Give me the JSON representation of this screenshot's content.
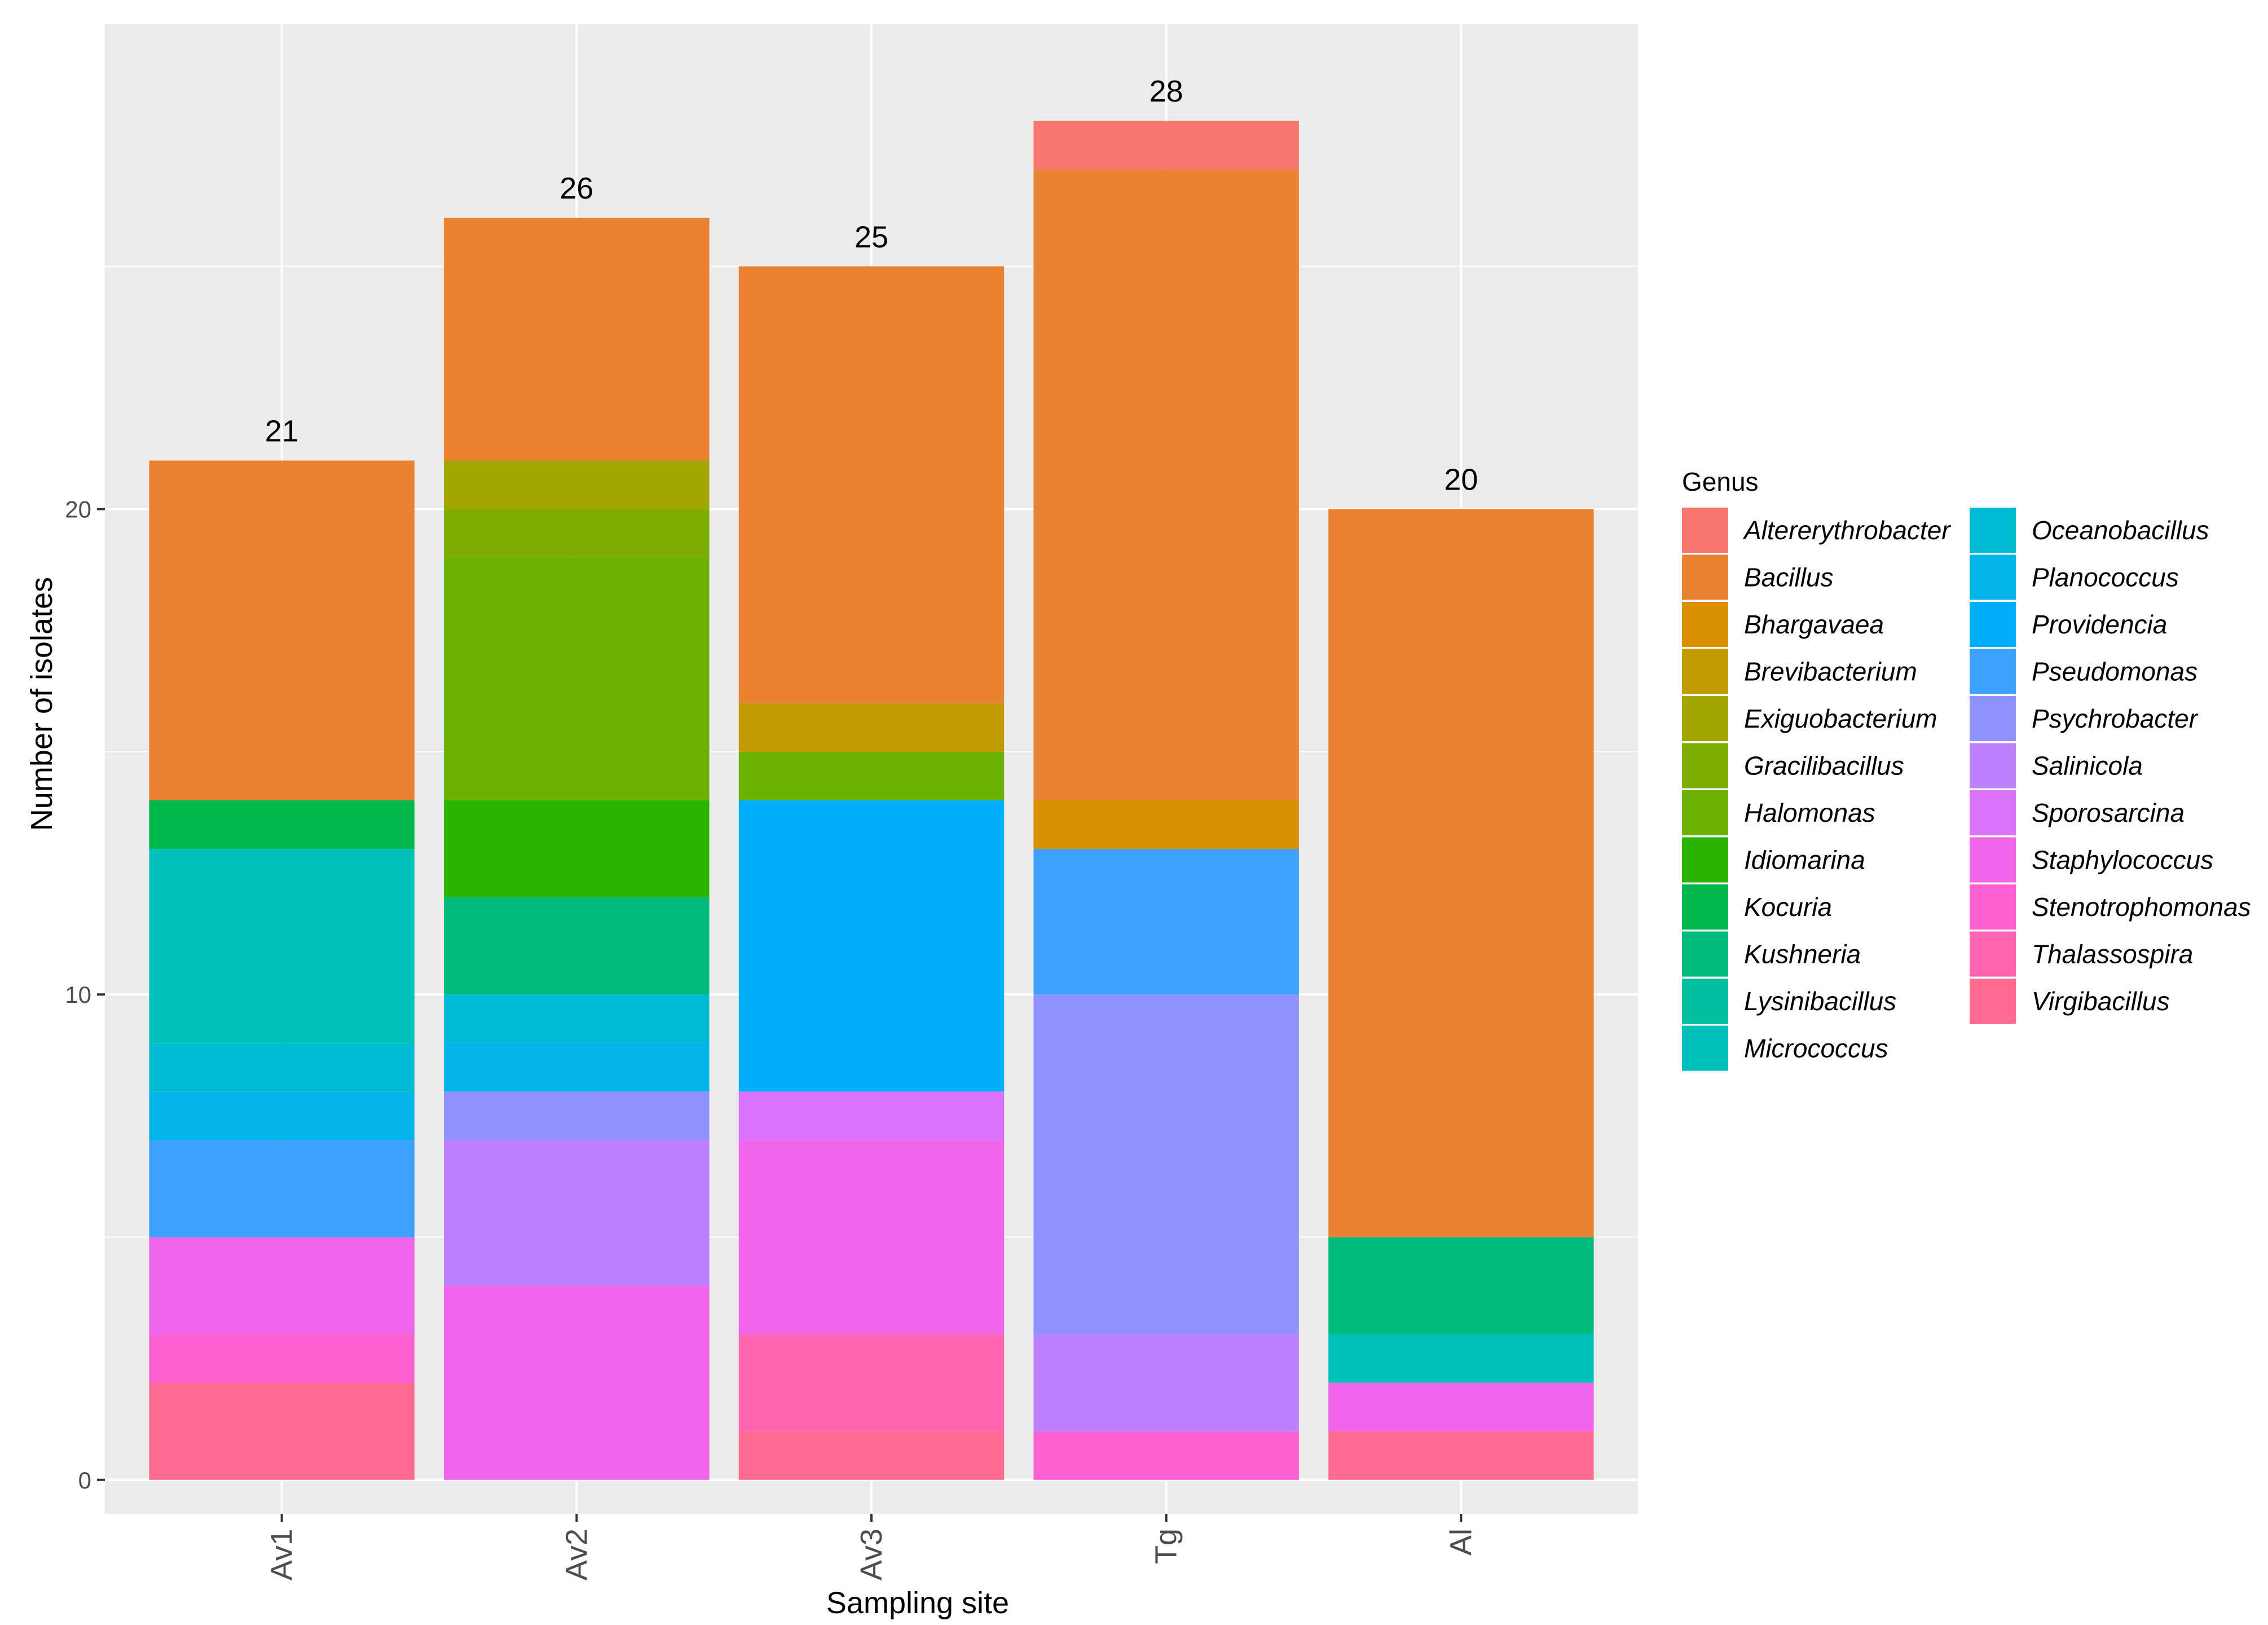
{
  "chart_data": {
    "type": "bar",
    "stacked": true,
    "xlabel": "Sampling site",
    "ylabel": "Number of isolates",
    "ylim": [
      -0.7,
      30
    ],
    "yticks": [
      0,
      10,
      20
    ],
    "categories": [
      "Av1",
      "Av2",
      "Av3",
      "Tg",
      "Al"
    ],
    "totals": [
      21,
      26,
      25,
      28,
      20
    ],
    "legend": {
      "title": "Genus",
      "placement": "right",
      "genera": [
        {
          "name": "Altererythrobacter",
          "color": "#F8766D"
        },
        {
          "name": "Bacillus",
          "color": "#EA8331"
        },
        {
          "name": "Bhargavaea",
          "color": "#D89000"
        },
        {
          "name": "Brevibacterium",
          "color": "#C09B00"
        },
        {
          "name": "Exiguobacterium",
          "color": "#A3A500"
        },
        {
          "name": "Gracilibacillus",
          "color": "#7CAE00"
        },
        {
          "name": "Halomonas",
          "color": "#6BB100"
        },
        {
          "name": "Idiomarina",
          "color": "#2BB500"
        },
        {
          "name": "Kocuria",
          "color": "#00B94B"
        },
        {
          "name": "Kushneria",
          "color": "#00BC7C"
        },
        {
          "name": "Lysinibacillus",
          "color": "#00BFA0"
        },
        {
          "name": "Micrococcus",
          "color": "#00C0BC"
        },
        {
          "name": "Oceanobacillus",
          "color": "#00BCD3"
        },
        {
          "name": "Planococcus",
          "color": "#00B6E8"
        },
        {
          "name": "Providencia",
          "color": "#00AEFA"
        },
        {
          "name": "Pseudomonas",
          "color": "#3DA1FF"
        },
        {
          "name": "Psychrobacter",
          "color": "#8F91FF"
        },
        {
          "name": "Salinicola",
          "color": "#BB81FF"
        },
        {
          "name": "Sporosarcina",
          "color": "#DA72FB"
        },
        {
          "name": "Staphylococcus",
          "color": "#F066EA"
        },
        {
          "name": "Stenotrophomonas",
          "color": "#FD61D1"
        },
        {
          "name": "Thalassospira",
          "color": "#FF65B0"
        },
        {
          "name": "Virgibacillus",
          "color": "#FF6C91"
        }
      ]
    },
    "series": [
      {
        "name": "Altererythrobacter",
        "values": [
          0,
          0,
          0,
          1,
          0
        ]
      },
      {
        "name": "Bacillus",
        "values": [
          7,
          5,
          9,
          13,
          15
        ]
      },
      {
        "name": "Bhargavaea",
        "values": [
          0,
          0,
          0,
          1,
          0
        ]
      },
      {
        "name": "Brevibacterium",
        "values": [
          0,
          0,
          1,
          0,
          0
        ]
      },
      {
        "name": "Exiguobacterium",
        "values": [
          0,
          1,
          0,
          0,
          0
        ]
      },
      {
        "name": "Gracilibacillus",
        "values": [
          0,
          1,
          0,
          0,
          0
        ]
      },
      {
        "name": "Halomonas",
        "values": [
          0,
          5,
          1,
          0,
          0
        ]
      },
      {
        "name": "Idiomarina",
        "values": [
          0,
          2,
          0,
          0,
          0
        ]
      },
      {
        "name": "Kocuria",
        "values": [
          1,
          0,
          0,
          0,
          0
        ]
      },
      {
        "name": "Kushneria",
        "values": [
          0,
          2,
          0,
          0,
          2
        ]
      },
      {
        "name": "Lysinibacillus",
        "values": [
          0,
          0,
          0,
          0,
          0
        ]
      },
      {
        "name": "Micrococcus",
        "values": [
          4,
          0,
          0,
          0,
          1
        ]
      },
      {
        "name": "Oceanobacillus",
        "values": [
          1,
          1,
          0,
          0,
          0
        ]
      },
      {
        "name": "Planococcus",
        "values": [
          1,
          1,
          0,
          0,
          0
        ]
      },
      {
        "name": "Providencia",
        "values": [
          0,
          0,
          6,
          0,
          0
        ]
      },
      {
        "name": "Pseudomonas",
        "values": [
          2,
          0,
          0,
          3,
          0
        ]
      },
      {
        "name": "Psychrobacter",
        "values": [
          0,
          1,
          0,
          7,
          0
        ]
      },
      {
        "name": "Salinicola",
        "values": [
          0,
          3,
          0,
          2,
          0
        ]
      },
      {
        "name": "Sporosarcina",
        "values": [
          0,
          0,
          1,
          0,
          0
        ]
      },
      {
        "name": "Staphylococcus",
        "values": [
          2,
          4,
          4,
          0,
          1
        ]
      },
      {
        "name": "Stenotrophomonas",
        "values": [
          1,
          0,
          0,
          1,
          0
        ]
      },
      {
        "name": "Thalassospira",
        "values": [
          0,
          0,
          2,
          0,
          0
        ]
      },
      {
        "name": "Virgibacillus",
        "values": [
          2,
          0,
          1,
          0,
          1
        ]
      }
    ]
  }
}
